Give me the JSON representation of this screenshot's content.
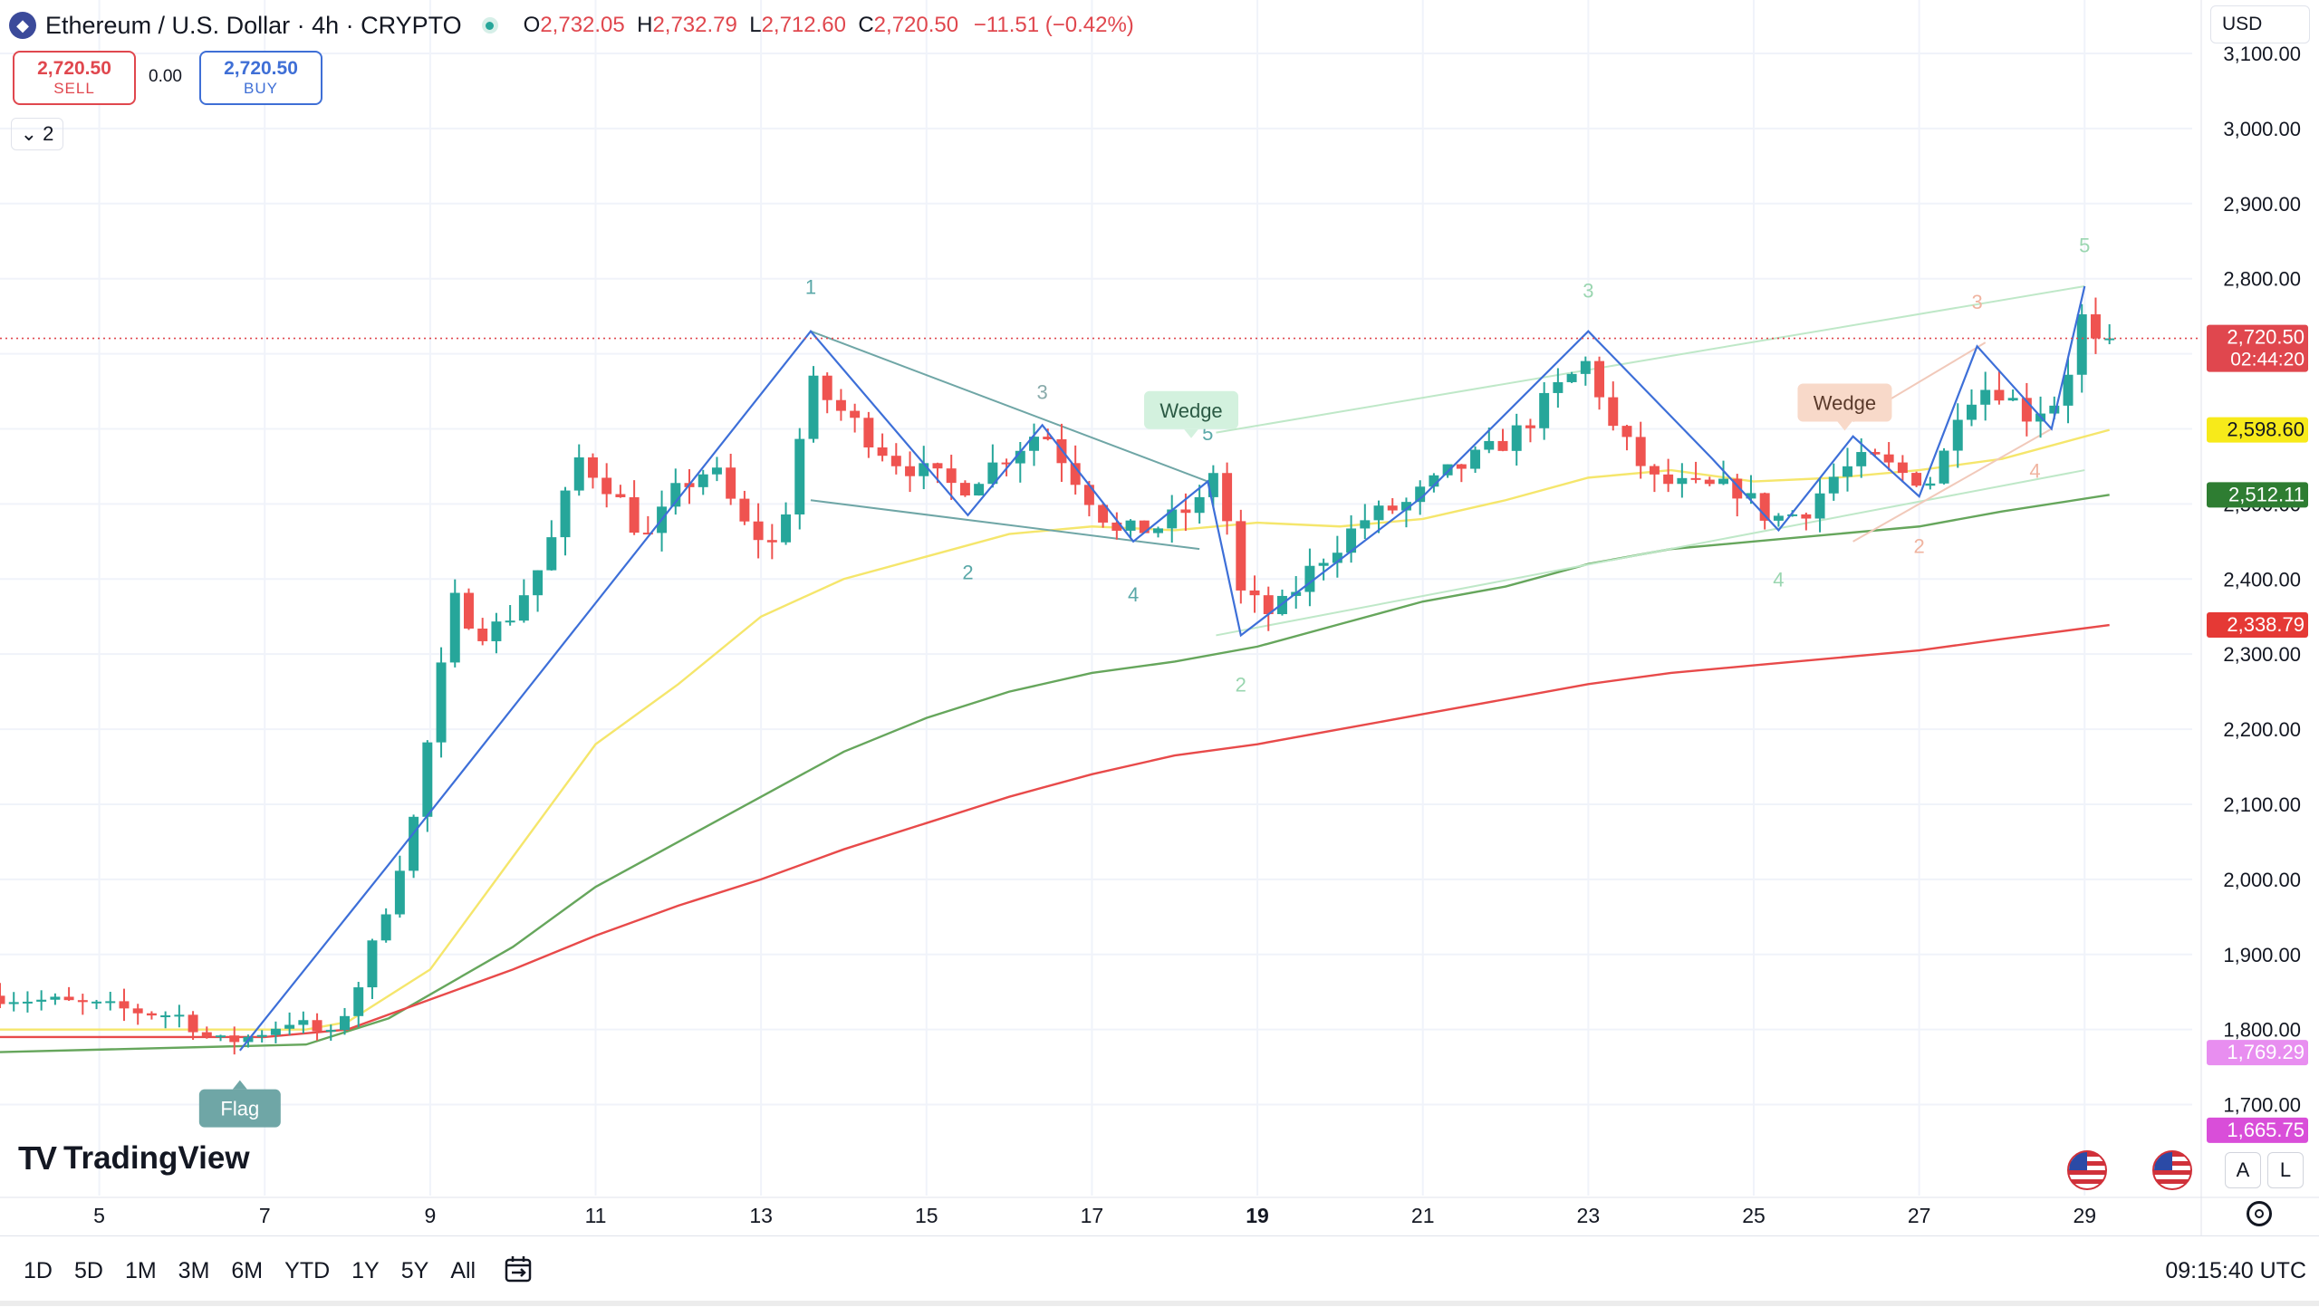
{
  "header": {
    "symbol_title": "Ethereum / U.S. Dollar · 4h · CRYPTO",
    "coin_icon": "ethereum-icon",
    "open_label": "O",
    "open_value": "2,732.05",
    "high_label": "H",
    "high_value": "2,732.79",
    "low_label": "L",
    "low_value": "2,712.60",
    "close_label": "C",
    "close_value": "2,720.50",
    "change": "−11.51 (−0.42%)"
  },
  "trade": {
    "sell_price": "2,720.50",
    "sell_label": "SELL",
    "spread": "0.00",
    "buy_price": "2,720.50",
    "buy_label": "BUY"
  },
  "indicators_toggle": {
    "count": "2"
  },
  "currency_selector": {
    "label": "USD"
  },
  "branding": {
    "logo_text": "TradingView",
    "logo_mark": "TV"
  },
  "axis_buttons": {
    "auto": "A",
    "log": "L"
  },
  "range_buttons": [
    "1D",
    "5D",
    "1M",
    "3M",
    "6M",
    "YTD",
    "1Y",
    "5Y",
    "All"
  ],
  "clock": "09:15:40 UTC",
  "colors": {
    "up": "#26a69a",
    "down": "#ef5350",
    "ma_yellow": "#f5e66c",
    "ma_green": "#66a65c",
    "ma_red": "#e84a4a",
    "zigzag": "#3d6fd8",
    "wedge_line": "#6fa6a6"
  },
  "chart_data": {
    "type": "candlestick",
    "title": "Ethereum / U.S. Dollar · 4h · CRYPTO",
    "ylim": [
      1615,
      3135
    ],
    "y_ticks": [
      1700,
      1800,
      1900,
      2000,
      2100,
      2200,
      2300,
      2400,
      2500,
      2600,
      2700,
      2800,
      2900,
      3000,
      3100
    ],
    "y_tick_labels": [
      "1,700.00",
      "1,800.00",
      "1,900.00",
      "2,000.00",
      "2,100.00",
      "2,200.00",
      "2,300.00",
      "2,400.00",
      "2,500.00",
      "2,600.00",
      "2,700.00",
      "2,800.00",
      "2,900.00",
      "3,000.00",
      "3,100.00"
    ],
    "x_ticks": [
      5,
      7,
      9,
      11,
      13,
      15,
      17,
      19,
      21,
      23,
      25,
      27,
      29
    ],
    "x_tick_labels": [
      "5",
      "7",
      "9",
      "11",
      "13",
      "15",
      "17",
      "19",
      "21",
      "23",
      "25",
      "27",
      "29"
    ],
    "x_bold_ticks": [
      "19"
    ],
    "xlim": [
      3.8,
      30.3
    ],
    "current_price": 2720.5,
    "price_labels": [
      {
        "value": 2720.5,
        "text": "2,720.50",
        "sub": "02:44:20",
        "color": "#e0474e"
      },
      {
        "value": 2598.6,
        "text": "2,598.60",
        "color": "#f7ea1a"
      },
      {
        "value": 2512.11,
        "text": "2,512.11",
        "color": "#2e7d32"
      },
      {
        "value": 2338.79,
        "text": "2,338.79",
        "color": "#e53935"
      },
      {
        "value": 1769.29,
        "text": "1,769.29",
        "color": "#e88ef0"
      },
      {
        "value": 1665.75,
        "text": "1,665.75",
        "color": "#d94ed9"
      }
    ],
    "anchor_points": [
      [
        3.8,
        1845
      ],
      [
        5.0,
        1830
      ],
      [
        6.0,
        1818
      ],
      [
        6.4,
        1782
      ],
      [
        6.8,
        1790
      ],
      [
        7.3,
        1812
      ],
      [
        7.8,
        1790
      ],
      [
        8.1,
        1850
      ],
      [
        8.4,
        1940
      ],
      [
        8.8,
        2080
      ],
      [
        9.1,
        2260
      ],
      [
        9.3,
        2370
      ],
      [
        9.6,
        2330
      ],
      [
        9.9,
        2340
      ],
      [
        10.4,
        2430
      ],
      [
        10.8,
        2560
      ],
      [
        11.2,
        2520
      ],
      [
        11.6,
        2450
      ],
      [
        12.0,
        2520
      ],
      [
        12.4,
        2550
      ],
      [
        12.8,
        2470
      ],
      [
        13.2,
        2440
      ],
      [
        13.6,
        2660
      ],
      [
        14.0,
        2620
      ],
      [
        14.6,
        2560
      ],
      [
        15.0,
        2540
      ],
      [
        15.4,
        2520
      ],
      [
        15.9,
        2560
      ],
      [
        16.4,
        2600
      ],
      [
        16.9,
        2520
      ],
      [
        17.3,
        2460
      ],
      [
        17.8,
        2470
      ],
      [
        18.3,
        2500
      ],
      [
        18.5,
        2555
      ],
      [
        18.8,
        2380
      ],
      [
        19.2,
        2350
      ],
      [
        19.7,
        2420
      ],
      [
        20.3,
        2480
      ],
      [
        20.8,
        2500
      ],
      [
        21.3,
        2540
      ],
      [
        21.8,
        2570
      ],
      [
        22.2,
        2600
      ],
      [
        22.6,
        2650
      ],
      [
        23.0,
        2690
      ],
      [
        23.3,
        2600
      ],
      [
        23.8,
        2530
      ],
      [
        24.3,
        2520
      ],
      [
        24.8,
        2520
      ],
      [
        25.2,
        2480
      ],
      [
        25.6,
        2490
      ],
      [
        26.0,
        2540
      ],
      [
        26.4,
        2560
      ],
      [
        26.8,
        2540
      ],
      [
        27.2,
        2530
      ],
      [
        27.5,
        2640
      ],
      [
        27.9,
        2660
      ],
      [
        28.3,
        2620
      ],
      [
        28.7,
        2640
      ],
      [
        29.0,
        2760
      ],
      [
        29.3,
        2720.5
      ]
    ],
    "moving_averages": [
      {
        "color": "#f5e66c",
        "points": [
          [
            3.8,
            1800
          ],
          [
            7.5,
            1800
          ],
          [
            8.0,
            1810
          ],
          [
            9.0,
            1880
          ],
          [
            10.0,
            2030
          ],
          [
            11.0,
            2180
          ],
          [
            12.0,
            2260
          ],
          [
            13.0,
            2350
          ],
          [
            14.0,
            2400
          ],
          [
            15.0,
            2430
          ],
          [
            16.0,
            2460
          ],
          [
            17.0,
            2470
          ],
          [
            18.0,
            2465
          ],
          [
            19.0,
            2475
          ],
          [
            20.0,
            2470
          ],
          [
            21.0,
            2480
          ],
          [
            22.0,
            2505
          ],
          [
            23.0,
            2535
          ],
          [
            24.0,
            2545
          ],
          [
            25.0,
            2530
          ],
          [
            26.0,
            2535
          ],
          [
            27.0,
            2545
          ],
          [
            28.0,
            2560
          ],
          [
            29.3,
            2598.6
          ]
        ]
      },
      {
        "color": "#66a65c",
        "points": [
          [
            3.8,
            1770
          ],
          [
            7.5,
            1780
          ],
          [
            8.5,
            1815
          ],
          [
            10.0,
            1910
          ],
          [
            11.0,
            1990
          ],
          [
            12.0,
            2050
          ],
          [
            13.0,
            2110
          ],
          [
            14.0,
            2170
          ],
          [
            15.0,
            2215
          ],
          [
            16.0,
            2250
          ],
          [
            17.0,
            2275
          ],
          [
            18.0,
            2290
          ],
          [
            19.0,
            2310
          ],
          [
            20.0,
            2340
          ],
          [
            21.0,
            2370
          ],
          [
            22.0,
            2390
          ],
          [
            23.0,
            2420
          ],
          [
            24.0,
            2440
          ],
          [
            25.0,
            2450
          ],
          [
            26.0,
            2460
          ],
          [
            27.0,
            2470
          ],
          [
            28.0,
            2490
          ],
          [
            29.3,
            2512.11
          ]
        ]
      },
      {
        "color": "#e84a4a",
        "points": [
          [
            3.8,
            1790
          ],
          [
            6.0,
            1790
          ],
          [
            7.0,
            1790
          ],
          [
            8.0,
            1800
          ],
          [
            9.0,
            1840
          ],
          [
            10.0,
            1880
          ],
          [
            11.0,
            1925
          ],
          [
            12.0,
            1965
          ],
          [
            13.0,
            2000
          ],
          [
            14.0,
            2040
          ],
          [
            15.0,
            2075
          ],
          [
            16.0,
            2110
          ],
          [
            17.0,
            2140
          ],
          [
            18.0,
            2165
          ],
          [
            19.0,
            2180
          ],
          [
            20.0,
            2200
          ],
          [
            21.0,
            2220
          ],
          [
            22.0,
            2240
          ],
          [
            23.0,
            2260
          ],
          [
            24.0,
            2275
          ],
          [
            25.0,
            2285
          ],
          [
            26.0,
            2295
          ],
          [
            27.0,
            2305
          ],
          [
            28.0,
            2320
          ],
          [
            29.3,
            2338.79
          ]
        ]
      }
    ],
    "zigzag": [
      [
        6.7,
        1772
      ],
      [
        8.5,
        2020
      ],
      [
        13.6,
        2730
      ],
      [
        15.5,
        2485
      ],
      [
        16.4,
        2605
      ],
      [
        17.5,
        2450
      ],
      [
        18.4,
        2530
      ],
      [
        18.8,
        2325
      ],
      [
        21.0,
        2510
      ],
      [
        23.0,
        2730
      ],
      [
        24.5,
        2560
      ],
      [
        25.3,
        2465
      ],
      [
        26.2,
        2590
      ],
      [
        27.0,
        2510
      ],
      [
        27.7,
        2710
      ],
      [
        28.6,
        2600
      ],
      [
        29.0,
        2790
      ]
    ],
    "wedge_lines": [
      {
        "color": "#6fa6a6",
        "points": [
          [
            13.6,
            2730
          ],
          [
            18.4,
            2530
          ]
        ]
      },
      {
        "color": "#6fa6a6",
        "points": [
          [
            13.6,
            2505
          ],
          [
            18.3,
            2440
          ]
        ]
      },
      {
        "color": "#bfe8c8",
        "points": [
          [
            18.5,
            2595
          ],
          [
            29.0,
            2790
          ]
        ]
      },
      {
        "color": "#bfe8c8",
        "points": [
          [
            18.5,
            2325
          ],
          [
            29.0,
            2545
          ]
        ]
      },
      {
        "color": "#f1c9ba",
        "points": [
          [
            26.2,
            2610
          ],
          [
            27.8,
            2715
          ]
        ]
      },
      {
        "color": "#f1c9ba",
        "points": [
          [
            26.2,
            2450
          ],
          [
            28.6,
            2600
          ]
        ]
      }
    ],
    "wave_labels": [
      {
        "x": 13.6,
        "y": 2780,
        "text": "1",
        "color": "#5aa8a8"
      },
      {
        "x": 16.4,
        "y": 2640,
        "text": "3",
        "color": "#8aa"
      },
      {
        "x": 15.5,
        "y": 2400,
        "text": "2",
        "color": "#5aa8a8"
      },
      {
        "x": 17.5,
        "y": 2370,
        "text": "4",
        "color": "#5aa8a8"
      },
      {
        "x": 18.4,
        "y": 2585,
        "text": "5",
        "color": "#5aa8a8"
      },
      {
        "x": 18.8,
        "y": 2250,
        "text": "2",
        "color": "#9ad6b0"
      },
      {
        "x": 23.0,
        "y": 2775,
        "text": "3",
        "color": "#9ad6b0"
      },
      {
        "x": 25.3,
        "y": 2390,
        "text": "4",
        "color": "#9ad6b0"
      },
      {
        "x": 29.0,
        "y": 2835,
        "text": "5",
        "color": "#9ad6b0"
      },
      {
        "x": 27.7,
        "y": 2760,
        "text": "3",
        "color": "#f0b4a0"
      },
      {
        "x": 27.0,
        "y": 2435,
        "text": "2",
        "color": "#f0b4a0"
      },
      {
        "x": 28.4,
        "y": 2535,
        "text": "4",
        "color": "#f0b4a0"
      }
    ],
    "pattern_labels": [
      {
        "x": 18.2,
        "y": 2625,
        "text": "Wedge",
        "bg": "#d3f1de",
        "fg": "#2b5a44"
      },
      {
        "x": 26.1,
        "y": 2635,
        "text": "Wedge",
        "bg": "#f8d9c9",
        "fg": "#5a3a2b"
      },
      {
        "x": 6.7,
        "y": 1695,
        "text": "Flag",
        "bg": "#6fa6a6",
        "fg": "#ffffff"
      }
    ]
  }
}
